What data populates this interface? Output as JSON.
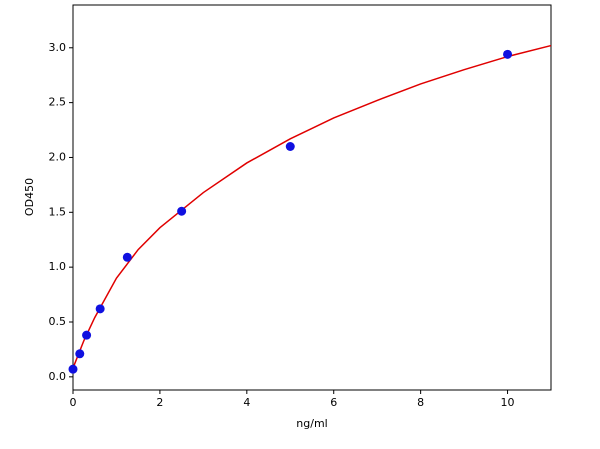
{
  "chart_data": {
    "type": "scatter",
    "x_label": "ng/ml",
    "y_label": "OD450",
    "xlim": [
      0,
      11
    ],
    "ylim": [
      -0.12,
      3.39
    ],
    "xticks": [
      0,
      2,
      4,
      6,
      8,
      10
    ],
    "yticks": [
      {
        "value": 0,
        "label": "0.0"
      },
      {
        "value": 0.5,
        "label": "0.5"
      },
      {
        "value": 1,
        "label": "1.0"
      },
      {
        "value": 1.5,
        "label": "1.5"
      },
      {
        "value": 2,
        "label": "2.0"
      },
      {
        "value": 2.5,
        "label": "2.5"
      },
      {
        "value": 3,
        "label": "3.0"
      }
    ],
    "series": [
      {
        "mark": "line",
        "color": "#e00000",
        "x": [
          0,
          0.25,
          0.5,
          1,
          1.5,
          2,
          3,
          4,
          5,
          6,
          7,
          8,
          9,
          10,
          11
        ],
        "values": [
          0.08,
          0.33,
          0.54,
          0.9,
          1.16,
          1.36,
          1.68,
          1.95,
          2.17,
          2.36,
          2.52,
          2.67,
          2.8,
          2.92,
          3.02
        ]
      },
      {
        "mark": "dot",
        "color": "#1010e0",
        "x": [
          0,
          0.156,
          0.3125,
          0.625,
          1.25,
          2.5,
          5,
          10
        ],
        "values": [
          0.07,
          0.21,
          0.38,
          0.62,
          1.09,
          1.51,
          2.1,
          2.94
        ]
      }
    ]
  }
}
